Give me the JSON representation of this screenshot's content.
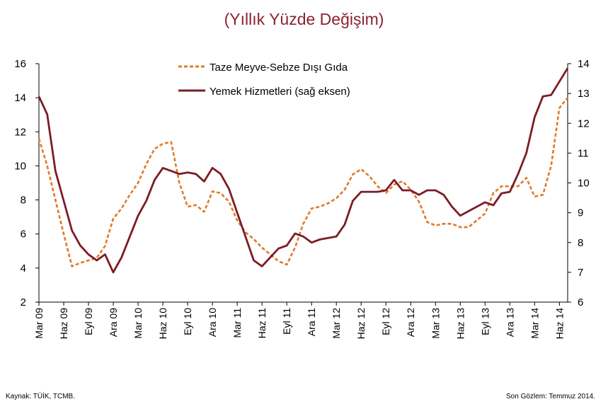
{
  "chart_data": {
    "type": "line",
    "title": "(Yıllık Yüzde Değişim)",
    "left_axis": {
      "min": 2,
      "max": 16,
      "step": 2,
      "ticks": [
        "2",
        "4",
        "6",
        "8",
        "10",
        "12",
        "14",
        "16"
      ]
    },
    "right_axis": {
      "min": 6,
      "max": 14,
      "step": 1,
      "ticks": [
        "6",
        "7",
        "8",
        "9",
        "10",
        "11",
        "12",
        "13",
        "14"
      ]
    },
    "x_tick_labels": [
      "Mar 09",
      "Haz 09",
      "Eyl 09",
      "Ara 09",
      "Mar 10",
      "Haz 10",
      "Eyl 10",
      "Ara 10",
      "Mar 11",
      "Haz 11",
      "Eyl 11",
      "Ara 11",
      "Mar 12",
      "Haz 12",
      "Eyl 12",
      "Ara 12",
      "Mar 13",
      "Haz 13",
      "Eyl 13",
      "Ara 13",
      "Mar 14",
      "Haz 14"
    ],
    "x_months": [
      "2009-03",
      "2009-04",
      "2009-05",
      "2009-06",
      "2009-07",
      "2009-08",
      "2009-09",
      "2009-10",
      "2009-11",
      "2009-12",
      "2010-01",
      "2010-02",
      "2010-03",
      "2010-04",
      "2010-05",
      "2010-06",
      "2010-07",
      "2010-08",
      "2010-09",
      "2010-10",
      "2010-11",
      "2010-12",
      "2011-01",
      "2011-02",
      "2011-03",
      "2011-04",
      "2011-05",
      "2011-06",
      "2011-07",
      "2011-08",
      "2011-09",
      "2011-10",
      "2011-11",
      "2011-12",
      "2012-01",
      "2012-02",
      "2012-03",
      "2012-04",
      "2012-05",
      "2012-06",
      "2012-07",
      "2012-08",
      "2012-09",
      "2012-10",
      "2012-11",
      "2012-12",
      "2013-01",
      "2013-02",
      "2013-03",
      "2013-04",
      "2013-05",
      "2013-06",
      "2013-07",
      "2013-08",
      "2013-09",
      "2013-10",
      "2013-11",
      "2013-12",
      "2014-01",
      "2014-02",
      "2014-03",
      "2014-04",
      "2014-05",
      "2014-06",
      "2014-07"
    ],
    "series": [
      {
        "name": "Taze Meyve-Sebze Dışı Gıda",
        "axis": "left",
        "style": "dashed",
        "color": "#e07b2a",
        "values": [
          11.6,
          10.0,
          8.0,
          6.0,
          4.1,
          4.3,
          4.45,
          4.6,
          5.3,
          6.9,
          7.5,
          8.3,
          9.0,
          10.1,
          11.0,
          11.3,
          11.4,
          9.0,
          7.6,
          7.7,
          7.3,
          8.5,
          8.4,
          7.9,
          6.8,
          6.1,
          5.7,
          5.2,
          4.8,
          4.4,
          4.2,
          5.2,
          6.6,
          7.5,
          7.6,
          7.8,
          8.1,
          8.6,
          9.5,
          9.8,
          9.4,
          8.8,
          8.4,
          8.9,
          9.1,
          8.6,
          7.9,
          6.7,
          6.5,
          6.6,
          6.6,
          6.4,
          6.4,
          6.8,
          7.2,
          8.4,
          8.8,
          8.8,
          8.8,
          9.3,
          8.2,
          8.3,
          10.0,
          13.4,
          14.0
        ]
      },
      {
        "name": "Yemek Hizmetleri (sağ eksen)",
        "axis": "right",
        "style": "solid",
        "color": "#7b1c24",
        "values": [
          12.9,
          12.3,
          10.4,
          9.4,
          8.4,
          7.9,
          7.6,
          7.4,
          7.6,
          7.0,
          7.5,
          8.2,
          8.9,
          9.4,
          10.1,
          10.5,
          10.4,
          10.3,
          10.35,
          10.3,
          10.05,
          10.5,
          10.3,
          9.8,
          9.0,
          8.2,
          7.4,
          7.2,
          7.5,
          7.8,
          7.9,
          8.3,
          8.2,
          8.0,
          8.1,
          8.15,
          8.2,
          8.6,
          9.4,
          9.7,
          9.7,
          9.7,
          9.75,
          10.1,
          9.75,
          9.75,
          9.6,
          9.75,
          9.75,
          9.6,
          9.2,
          8.9,
          9.05,
          9.2,
          9.35,
          9.25,
          9.65,
          9.7,
          10.3,
          11.0,
          12.2,
          12.9,
          12.95,
          13.4,
          13.85
        ]
      }
    ],
    "legend_position": "top-center",
    "grid": false
  },
  "footer": {
    "source": "Kaynak:  TÜİK, TCMB.",
    "note": "Son Gözlem: Temmuz 2014."
  }
}
